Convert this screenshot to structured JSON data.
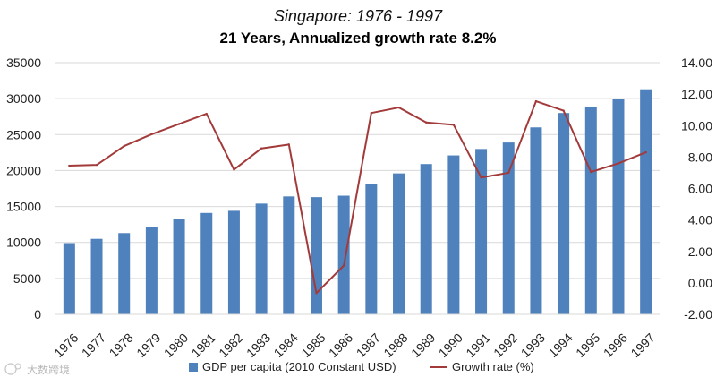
{
  "chart_data": {
    "type": "bar+line",
    "title": "Singapore: 1976 - 1997",
    "subtitle": "21 Years, Annualized growth rate 8.2%",
    "categories": [
      "1976",
      "1977",
      "1978",
      "1979",
      "1980",
      "1981",
      "1982",
      "1983",
      "1984",
      "1985",
      "1986",
      "1987",
      "1988",
      "1989",
      "1990",
      "1991",
      "1992",
      "1993",
      "1994",
      "1995",
      "1996",
      "1997"
    ],
    "series": [
      {
        "name": "GDP per capita (2010 Constant USD)",
        "type": "bar",
        "axis": "left",
        "color": "#4f81bd",
        "values": [
          9900,
          10500,
          11300,
          12200,
          13300,
          14100,
          14400,
          15400,
          16400,
          16300,
          16500,
          18100,
          19600,
          20900,
          22100,
          23000,
          23900,
          26000,
          28000,
          28900,
          29900,
          31300
        ]
      },
      {
        "name": "Growth rate (%)",
        "type": "line",
        "axis": "right",
        "color": "#a33a3a",
        "values": [
          7.45,
          7.5,
          8.7,
          9.45,
          10.1,
          10.75,
          7.2,
          8.55,
          8.8,
          -0.65,
          1.1,
          10.8,
          11.15,
          10.2,
          10.05,
          6.7,
          7.0,
          11.55,
          10.95,
          7.05,
          7.6,
          8.3
        ]
      }
    ],
    "ylim_left": [
      0,
      35000
    ],
    "yticks_left": [
      "35000",
      "30000",
      "25000",
      "20000",
      "15000",
      "10000",
      "5000",
      "0"
    ],
    "ylim_right": [
      -2,
      14
    ],
    "yticks_right": [
      "14.00",
      "12.00",
      "10.00",
      "8.00",
      "6.00",
      "4.00",
      "2.00",
      "0.00",
      "-2.00"
    ],
    "grid": true,
    "legend": "bottom"
  },
  "watermark": "大数跨境"
}
